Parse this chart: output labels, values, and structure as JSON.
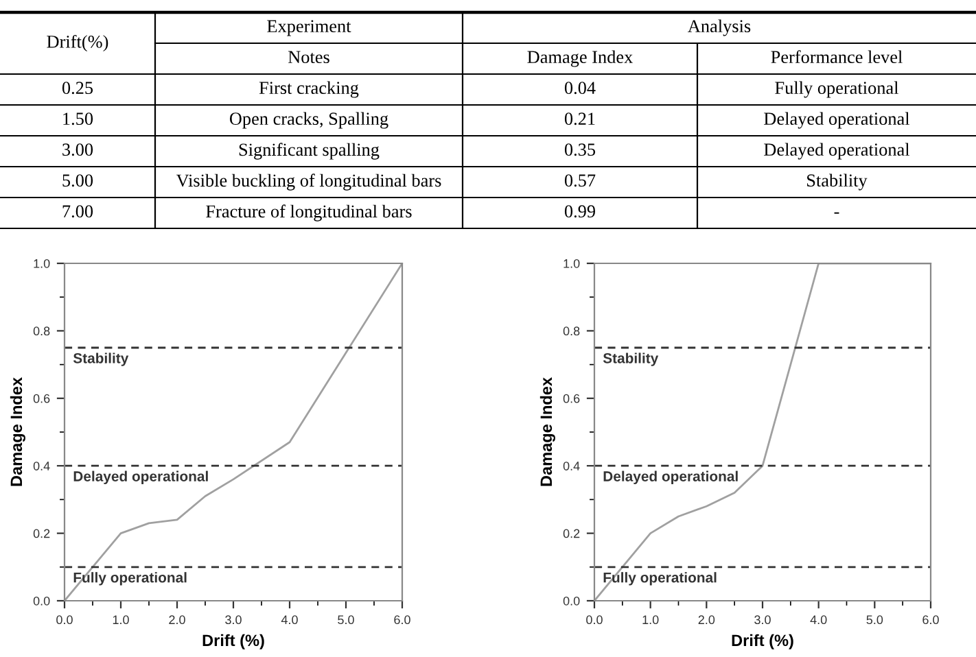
{
  "chart_data": [
    {
      "type": "other",
      "annotations": [
        "Drift(%)",
        "Experiment",
        "Analysis",
        "Notes",
        "Damage Index",
        "Performance level",
        "0.25",
        "First cracking",
        "0.04",
        "Fully operational",
        "1.50",
        "Open cracks, Spalling",
        "0.21",
        "Delayed operational",
        "3.00",
        "Significant spalling",
        "0.35",
        "Delayed operational",
        "5.00",
        "Visible buckling of longitudinal bars",
        "0.57",
        "Stability",
        "7.00",
        "Fracture of longitudinal bars",
        "0.99",
        "-"
      ]
    },
    {
      "type": "line",
      "xlabel": "Drift (%)",
      "ylabel": "Damage Index",
      "series": [
        {
          "color": "#a0a0a0",
          "x": [
            0,
            1,
            1.5,
            2,
            2.5,
            3,
            4,
            6
          ],
          "values": [
            0,
            0.2,
            0.23,
            0.24,
            0.31,
            0.36,
            0.47,
            1.0
          ]
        }
      ],
      "xlim": [
        0,
        6
      ],
      "ylim": [
        0,
        1
      ],
      "xticks": [
        {
          "value": 0,
          "label": "0.0"
        },
        {
          "value": 1,
          "label": "1.0"
        },
        {
          "value": 2,
          "label": "2.0"
        },
        {
          "value": 3,
          "label": "3.0"
        },
        {
          "value": 4,
          "label": "4.0"
        },
        {
          "value": 5,
          "label": "5.0"
        },
        {
          "value": 6,
          "label": "6.0"
        }
      ],
      "yticks": [
        {
          "value": 0,
          "label": "0.0"
        },
        {
          "value": 0.2,
          "label": "0.2"
        },
        {
          "value": 0.4,
          "label": "0.4"
        },
        {
          "value": 0.6,
          "label": "0.6"
        },
        {
          "value": 0.8,
          "label": "0.8"
        },
        {
          "value": 1,
          "label": "1.0"
        }
      ],
      "ref_lines": [
        {
          "axis": "y",
          "value": 0.1,
          "label": "Fully operational",
          "color": "#333333",
          "line_style": "dashed"
        },
        {
          "axis": "y",
          "value": 0.4,
          "label": "Delayed operational",
          "color": "#333333",
          "line_style": "dashed"
        },
        {
          "axis": "y",
          "value": 0.75,
          "label": "Stability",
          "color": "#333333",
          "line_style": "dashed"
        }
      ],
      "grid": false,
      "legend": false
    },
    {
      "type": "line",
      "xlabel": "Drift (%)",
      "ylabel": "Damage Index",
      "series": [
        {
          "color": "#a0a0a0",
          "x": [
            0,
            1,
            1.5,
            2,
            2.5,
            3,
            4,
            6
          ],
          "values": [
            0,
            0.2,
            0.25,
            0.28,
            0.32,
            0.4,
            1.0,
            1.0
          ]
        }
      ],
      "xlim": [
        0,
        6
      ],
      "ylim": [
        0,
        1
      ],
      "xticks": [
        {
          "value": 0,
          "label": "0.0"
        },
        {
          "value": 1,
          "label": "1.0"
        },
        {
          "value": 2,
          "label": "2.0"
        },
        {
          "value": 3,
          "label": "3.0"
        },
        {
          "value": 4,
          "label": "4.0"
        },
        {
          "value": 5,
          "label": "5.0"
        },
        {
          "value": 6,
          "label": "6.0"
        }
      ],
      "yticks": [
        {
          "value": 0,
          "label": "0.0"
        },
        {
          "value": 0.2,
          "label": "0.2"
        },
        {
          "value": 0.4,
          "label": "0.4"
        },
        {
          "value": 0.6,
          "label": "0.6"
        },
        {
          "value": 0.8,
          "label": "0.8"
        },
        {
          "value": 1,
          "label": "1.0"
        }
      ],
      "ref_lines": [
        {
          "axis": "y",
          "value": 0.1,
          "label": "Fully operational",
          "color": "#333333",
          "line_style": "dashed"
        },
        {
          "axis": "y",
          "value": 0.4,
          "label": "Delayed operational",
          "color": "#333333",
          "line_style": "dashed"
        },
        {
          "axis": "y",
          "value": 0.75,
          "label": "Stability",
          "color": "#333333",
          "line_style": "dashed"
        }
      ],
      "grid": false,
      "legend": false
    }
  ]
}
